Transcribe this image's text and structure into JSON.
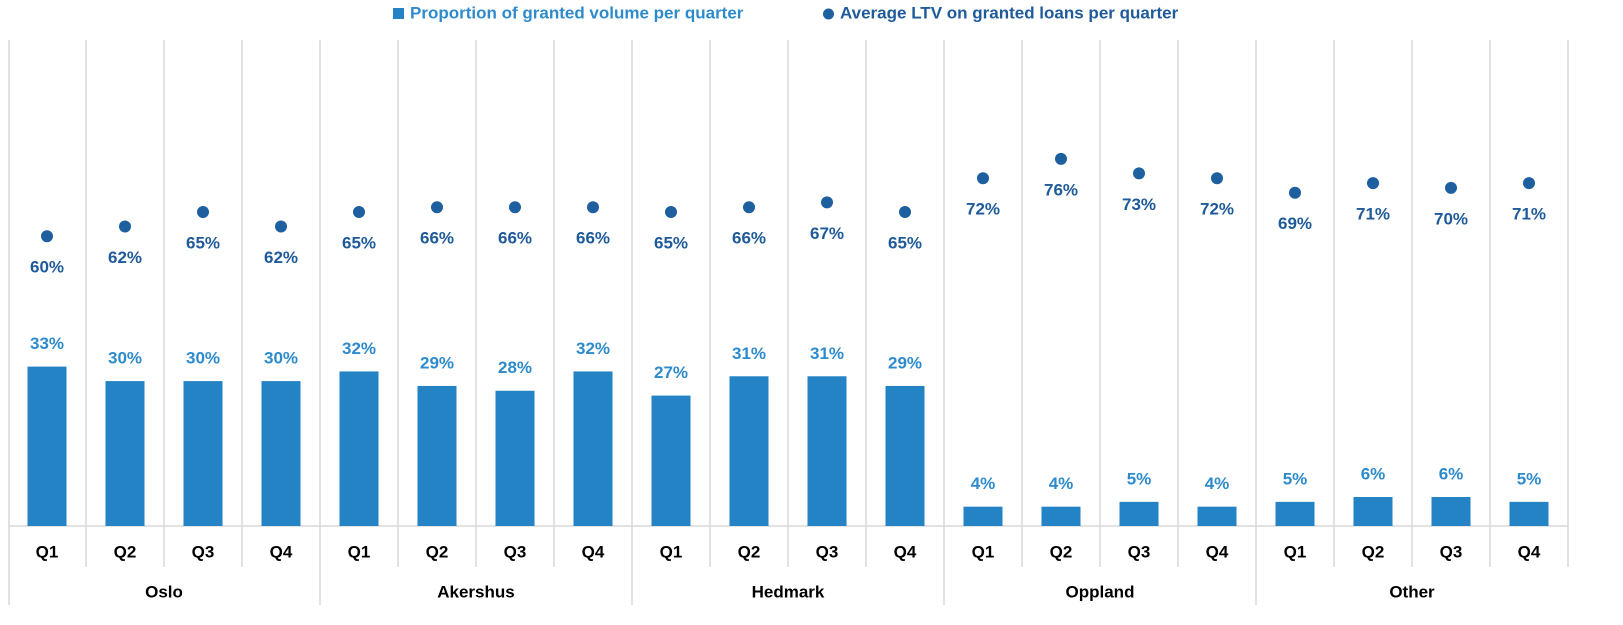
{
  "chart_data": {
    "type": "bar",
    "groups": [
      {
        "name": "Oslo",
        "categories": [
          "Q1",
          "Q2",
          "Q3",
          "Q4"
        ]
      },
      {
        "name": "Akershus",
        "categories": [
          "Q1",
          "Q2",
          "Q3",
          "Q4"
        ]
      },
      {
        "name": "Hedmark",
        "categories": [
          "Q1",
          "Q2",
          "Q3",
          "Q4"
        ]
      },
      {
        "name": "Oppland",
        "categories": [
          "Q1",
          "Q2",
          "Q3",
          "Q4"
        ]
      },
      {
        "name": "Other",
        "categories": [
          "Q1",
          "Q2",
          "Q3",
          "Q4"
        ]
      }
    ],
    "series": [
      {
        "name": "Proportion of granted volume per quarter",
        "mark": "bar",
        "color": "#2383c4",
        "label_color": "#2e8bcb",
        "values": [
          33,
          30,
          30,
          30,
          32,
          29,
          28,
          32,
          27,
          31,
          31,
          29,
          4,
          4,
          5,
          4,
          5,
          6,
          6,
          5
        ],
        "value_labels": [
          "33%",
          "30%",
          "30%",
          "30%",
          "32%",
          "29%",
          "28%",
          "32%",
          "27%",
          "31%",
          "31%",
          "29%",
          "4%",
          "4%",
          "5%",
          "4%",
          "5%",
          "6%",
          "6%",
          "5%"
        ]
      },
      {
        "name": "Average LTV on granted loans per quarter",
        "mark": "dot",
        "color": "#1d5f9f",
        "label_color": "#1f5a9a",
        "values": [
          60,
          62,
          65,
          62,
          65,
          66,
          66,
          66,
          65,
          66,
          67,
          65,
          72,
          76,
          73,
          72,
          69,
          71,
          70,
          71
        ],
        "value_labels": [
          "60%",
          "62%",
          "65%",
          "62%",
          "65%",
          "66%",
          "66%",
          "66%",
          "65%",
          "66%",
          "67%",
          "65%",
          "72%",
          "76%",
          "73%",
          "72%",
          "69%",
          "71%",
          "70%",
          "71%"
        ]
      }
    ],
    "ylim": [
      0,
      100
    ]
  }
}
